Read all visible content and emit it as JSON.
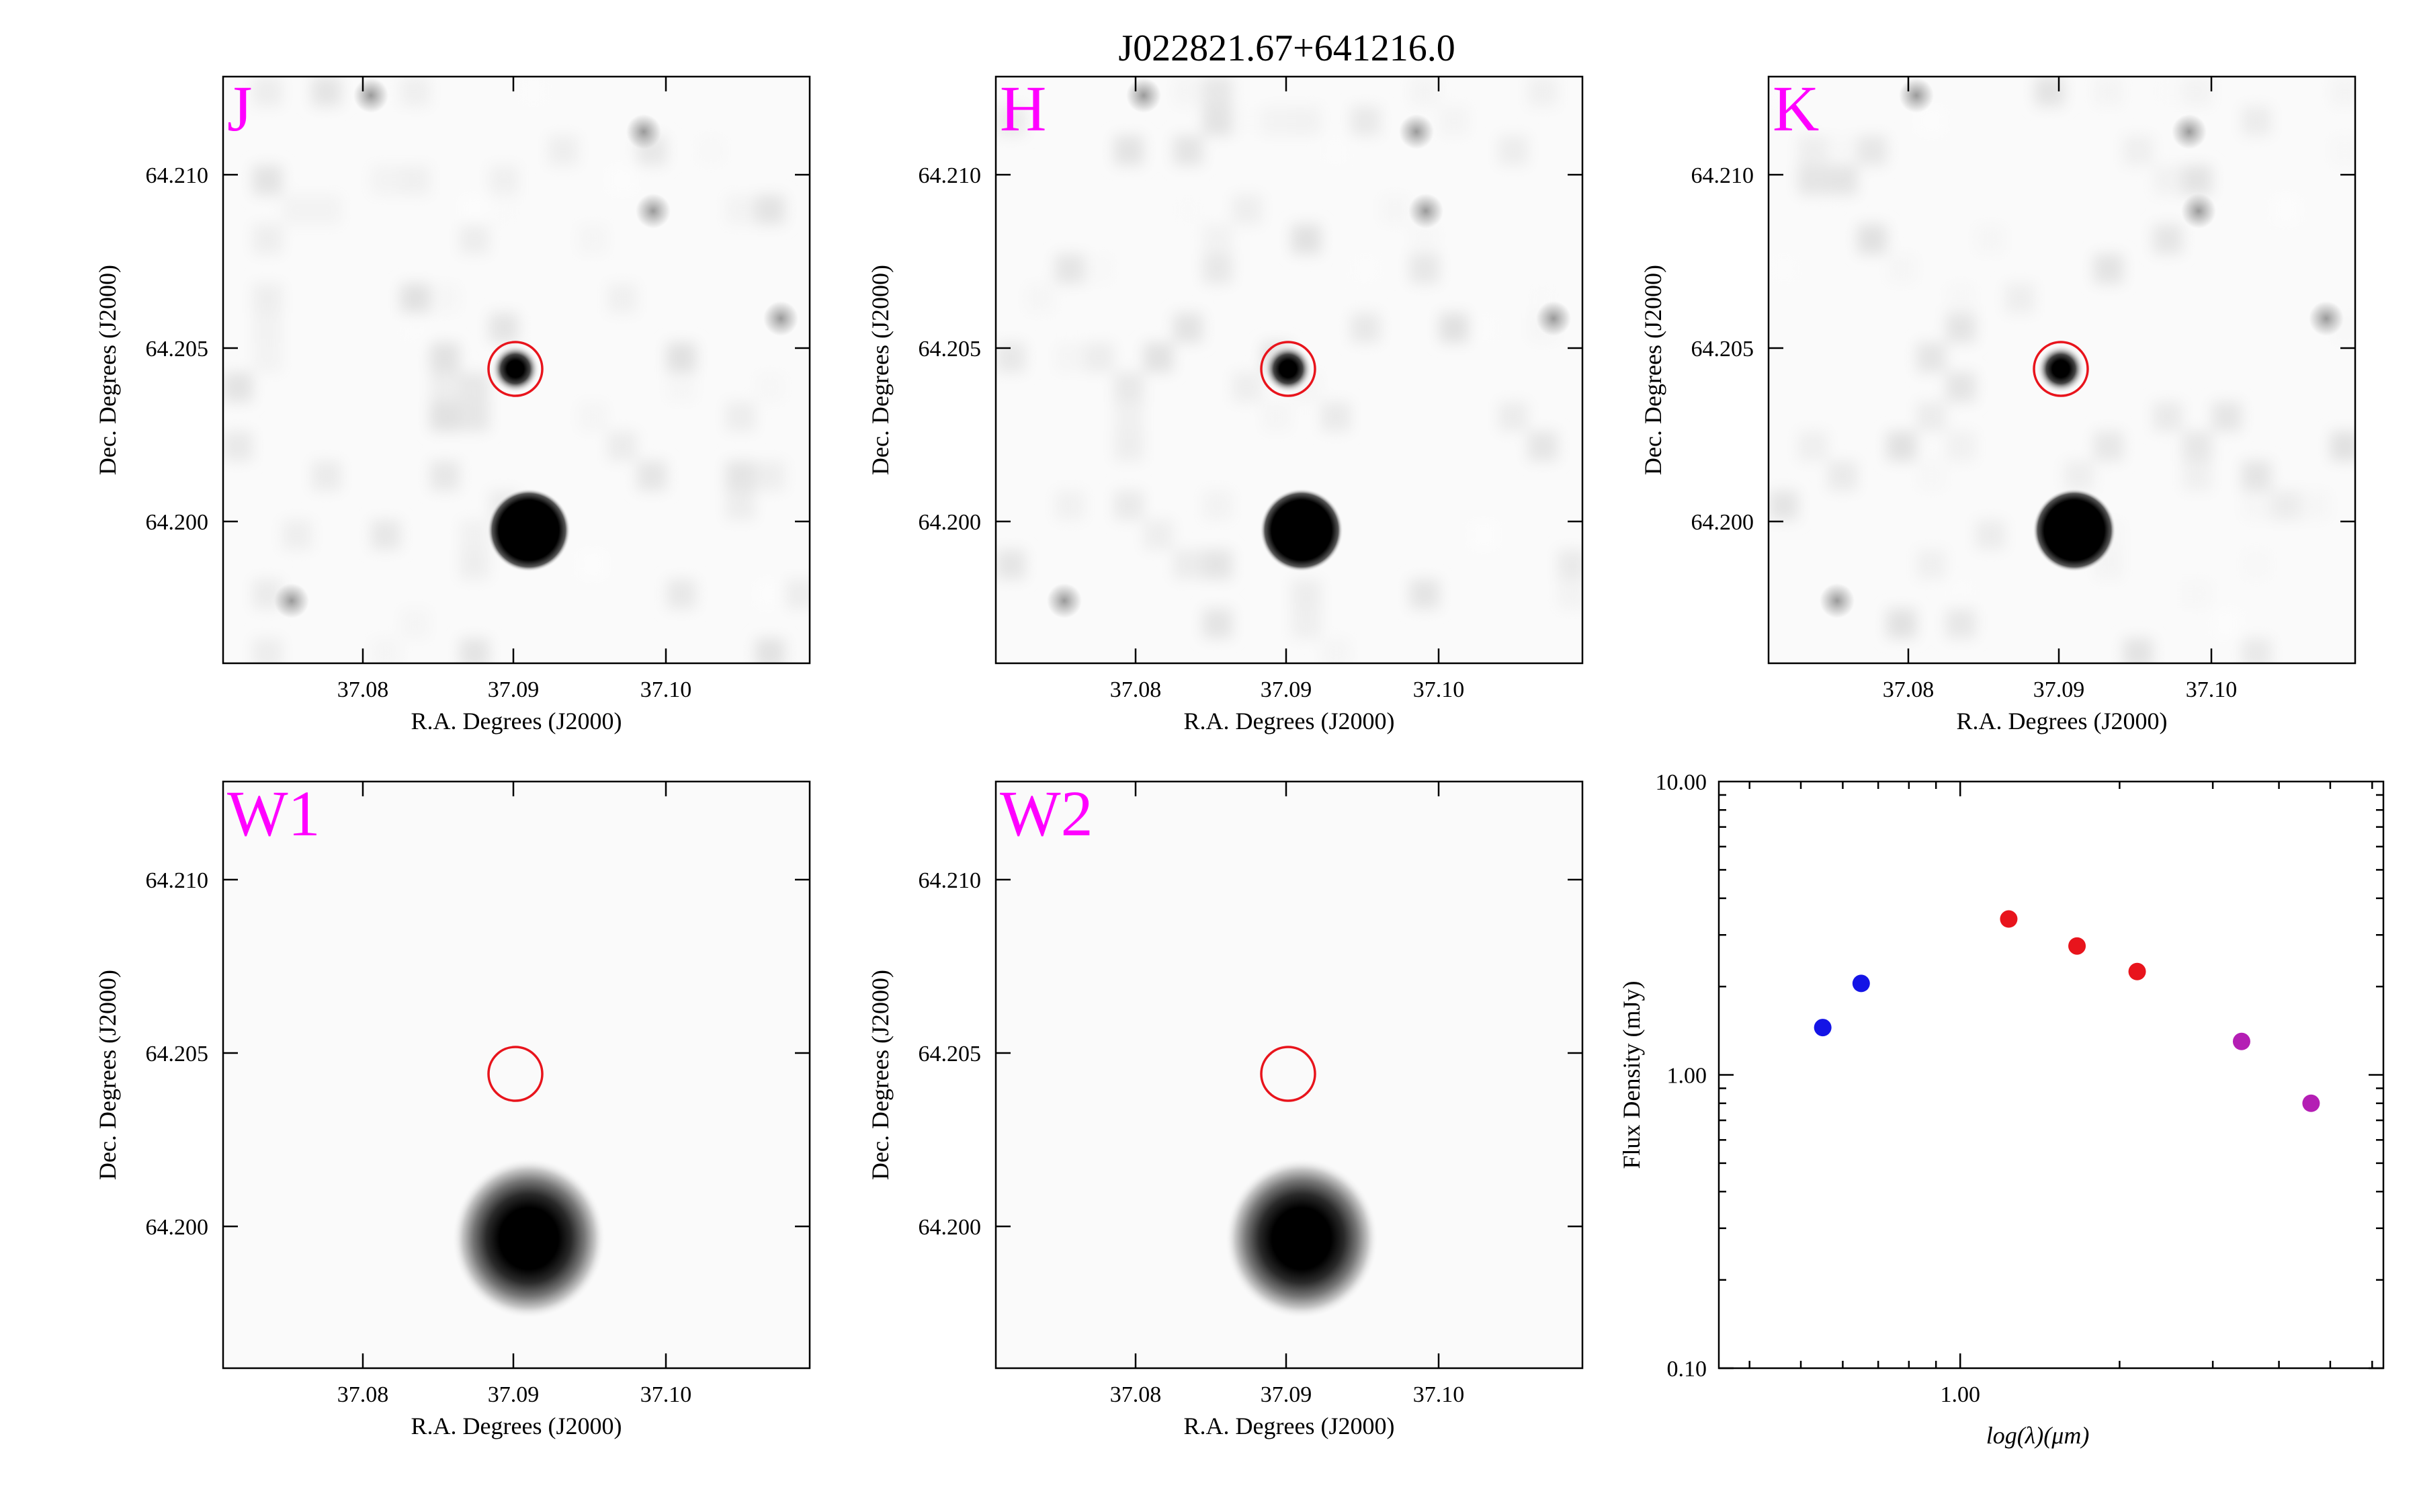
{
  "title": "J022821.67+641216.0",
  "panels": [
    {
      "band": "J",
      "xlabel": "R.A. Degrees (J2000)",
      "ylabel": "Dec. Degrees (J2000)",
      "xticks": [
        "37.08",
        "37.09",
        "37.10"
      ],
      "yticks": [
        "64.210",
        "64.205",
        "64.200"
      ],
      "target_detected": true
    },
    {
      "band": "H",
      "xlabel": "R.A. Degrees (J2000)",
      "ylabel": "Dec. Degrees (J2000)",
      "xticks": [
        "37.08",
        "37.09",
        "37.10"
      ],
      "yticks": [
        "64.210",
        "64.205",
        "64.200"
      ],
      "target_detected": true
    },
    {
      "band": "K",
      "xlabel": "R.A. Degrees (J2000)",
      "ylabel": "Dec. Degrees (J2000)",
      "xticks": [
        "37.08",
        "37.09",
        "37.10"
      ],
      "yticks": [
        "64.210",
        "64.205",
        "64.200"
      ],
      "target_detected": true
    },
    {
      "band": "W1",
      "xlabel": "R.A. Degrees (J2000)",
      "ylabel": "Dec. Degrees (J2000)",
      "xticks": [
        "37.08",
        "37.09",
        "37.10"
      ],
      "yticks": [
        "64.210",
        "64.205",
        "64.200"
      ],
      "target_detected": false
    },
    {
      "band": "W2",
      "xlabel": "R.A. Degrees (J2000)",
      "ylabel": "Dec. Degrees (J2000)",
      "xticks": [
        "37.08",
        "37.09",
        "37.10"
      ],
      "yticks": [
        "64.210",
        "64.205",
        "64.200"
      ],
      "target_detected": false
    }
  ],
  "colors": {
    "band_label": "#ff00ff",
    "circle": "#e8141c",
    "optical": "#1414e6",
    "near_ir": "#e8141c",
    "mid_ir": "#b41eb4"
  },
  "chart_data": {
    "type": "scatter",
    "xlabel": "log(λ)(μm)",
    "ylabel": "Flux Density (mJy)",
    "xscale": "log",
    "yscale": "log",
    "xlim": [
      0.35,
      6.3
    ],
    "ylim": [
      0.1,
      10
    ],
    "xticklabels": [
      "1.00"
    ],
    "yticklabels": [
      "10.00",
      "1.00",
      "0.10"
    ],
    "series": [
      {
        "color": "#1414e6",
        "x": [
          0.55,
          0.65
        ],
        "y": [
          1.45,
          2.05
        ]
      },
      {
        "color": "#e8141c",
        "x": [
          1.235,
          1.662,
          2.159
        ],
        "y": [
          3.4,
          2.75,
          2.25
        ]
      },
      {
        "color": "#b41eb4",
        "x": [
          3.4,
          4.6
        ],
        "y": [
          1.3,
          0.8
        ]
      }
    ]
  }
}
